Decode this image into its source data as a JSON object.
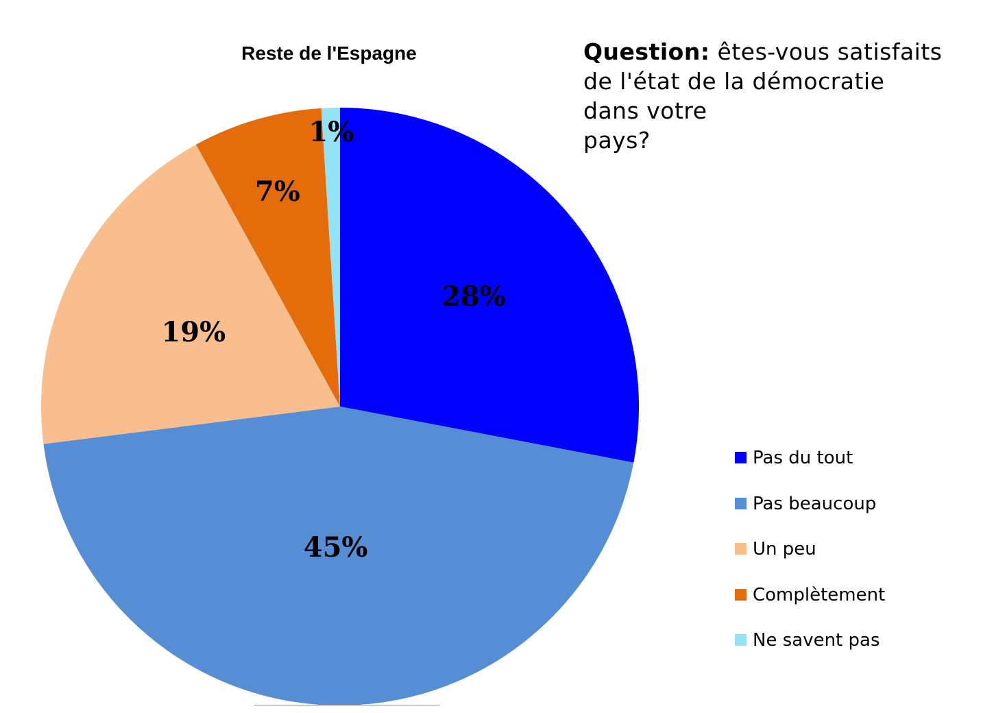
{
  "chart_data": {
    "type": "pie",
    "title": "Reste de l'Espagne",
    "slices": [
      {
        "label": "Pas du tout",
        "value": 28,
        "display": "28%",
        "color": "#0000ff"
      },
      {
        "label": "Pas beaucoup",
        "value": 45,
        "display": "45%",
        "color": "#558ed5"
      },
      {
        "label": "Un peu",
        "value": 19,
        "display": "19%",
        "color": "#f9be8e"
      },
      {
        "label": "Complètement",
        "value": 7,
        "display": "7%",
        "color": "#e46c0a"
      },
      {
        "label": "Ne savent pas",
        "value": 1,
        "display": "1%",
        "color": "#93e3f5"
      }
    ],
    "start": "12 o'clock",
    "direction": "clockwise",
    "legend_position": "right-bottom"
  },
  "question": {
    "label": "Question:",
    "lines": [
      "êtes-vous satisfaits",
      "de l'état de la démocratie",
      "dans votre",
      "pays?"
    ]
  }
}
